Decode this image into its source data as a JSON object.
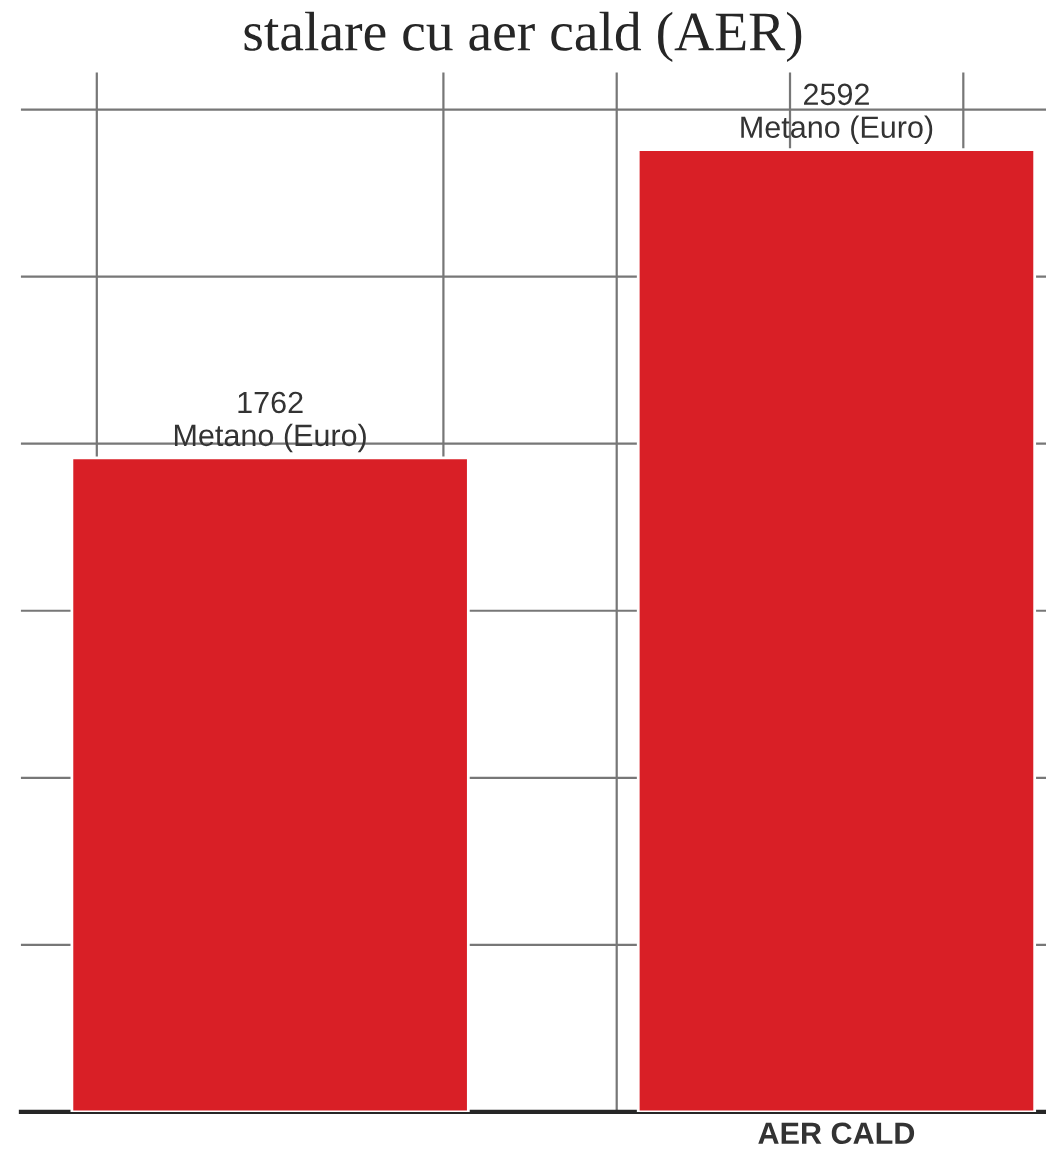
{
  "chart_data": {
    "type": "bar",
    "title": "stalare cu aer cald (AER)",
    "categories": [
      null,
      "AER CALD"
    ],
    "values": [
      1762,
      2592
    ],
    "color": "#d91f26",
    "value_labels": [
      "1762\nMetano (Euro)",
      "2592\nMetano (Euro)"
    ],
    "ylim": [
      0,
      2800
    ],
    "yticks": [
      {
        "value": 450,
        "label": null
      },
      {
        "value": 900,
        "label": null
      },
      {
        "value": 1350,
        "label": null
      },
      {
        "value": 1800,
        "label": null
      },
      {
        "value": 2250,
        "label": null
      },
      {
        "value": 2700,
        "label": null
      }
    ],
    "grid": true,
    "tick_labels": "x"
  }
}
